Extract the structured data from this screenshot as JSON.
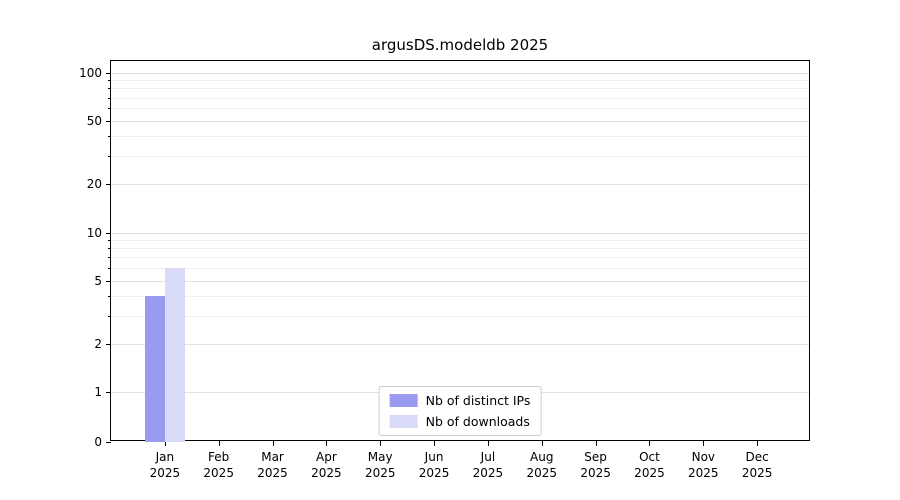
{
  "figure": {
    "title": "argusDS.modeldb 2025",
    "background": "#ffffff"
  },
  "legend": {
    "items": [
      {
        "label": "Nb of distinct IPs",
        "color": "#9a9af0"
      },
      {
        "label": "Nb of downloads",
        "color": "#d9d9f8"
      }
    ]
  },
  "chart_data": {
    "type": "bar",
    "title": "argusDS.modeldb 2025",
    "categories": [
      "Jan",
      "Feb",
      "Mar",
      "Apr",
      "May",
      "Jun",
      "Jul",
      "Aug",
      "Sep",
      "Oct",
      "Nov",
      "Dec"
    ],
    "year_label": "2025",
    "series": [
      {
        "name": "Nb of distinct IPs",
        "color": "#9a9af0",
        "values": [
          4,
          0,
          0,
          0,
          0,
          0,
          0,
          0,
          0,
          0,
          0,
          0
        ]
      },
      {
        "name": "Nb of downloads",
        "color": "#d9d9f8",
        "values": [
          6,
          0,
          0,
          0,
          0,
          0,
          0,
          0,
          0,
          0,
          0,
          0
        ]
      }
    ],
    "xlabel": "",
    "ylabel": "",
    "yscale": "symlog",
    "yticks": [
      0,
      1,
      2,
      5,
      10,
      20,
      50,
      100
    ],
    "minor_yticks": [
      3,
      4,
      6,
      7,
      8,
      9,
      30,
      40,
      60,
      70,
      80,
      90
    ],
    "ylim": [
      0,
      117
    ],
    "grid": "horizontal",
    "legend_position": "lower center"
  }
}
